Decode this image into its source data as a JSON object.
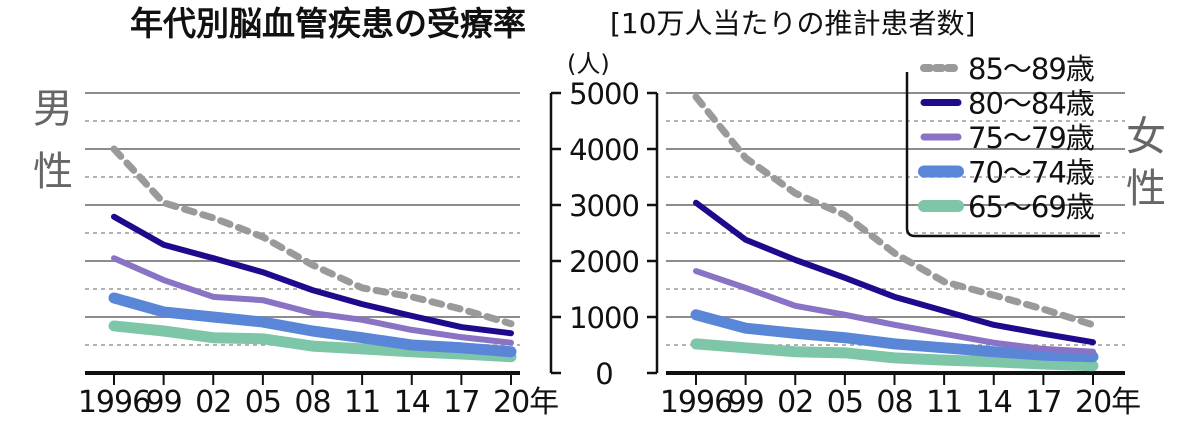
{
  "chart_data": {
    "type": "line",
    "title": "年代別脳血管疾患の受療率",
    "subtitle": "[10万人当たりの推計患者数]",
    "ylabel": "(人)",
    "xlabel_suffix": "年",
    "ylim": [
      0,
      5000
    ],
    "y_ticks": [
      0,
      1000,
      2000,
      3000,
      4000,
      5000
    ],
    "y_tick_labels": [
      "0",
      "1000",
      "2000",
      "3000",
      "4000",
      "5000"
    ],
    "y_minor_gridlines": [
      500,
      1500,
      2500,
      3500,
      4500
    ],
    "grid": true,
    "x": [
      1996,
      1999,
      2002,
      2005,
      2008,
      2011,
      2014,
      2017,
      2020
    ],
    "x_tick_labels": [
      "1996",
      "99",
      "02",
      "05",
      "08",
      "11",
      "14",
      "17",
      "20年"
    ],
    "legend_position": "top-right",
    "legend": [
      {
        "name": "85〜89歳",
        "color": "#9a9a9a",
        "style": "dashed"
      },
      {
        "name": "80〜84歳",
        "color": "#1e0a8c",
        "style": "solid"
      },
      {
        "name": "75〜79歳",
        "color": "#8a72c4",
        "style": "solid"
      },
      {
        "name": "70〜74歳",
        "color": "#5a86d8",
        "style": "solid"
      },
      {
        "name": "65〜69歳",
        "color": "#7ec6a8",
        "style": "solid"
      }
    ],
    "panels": [
      {
        "label": "男性",
        "series": [
          {
            "name": "85〜89歳",
            "values": [
              4000,
              3040,
              2770,
              2430,
              1930,
              1520,
              1360,
              1140,
              880
            ]
          },
          {
            "name": "80〜84歳",
            "values": [
              2790,
              2290,
              2050,
              1800,
              1480,
              1230,
              1020,
              820,
              710
            ]
          },
          {
            "name": "75〜79歳",
            "values": [
              2050,
              1660,
              1360,
              1300,
              1070,
              950,
              770,
              640,
              540
            ]
          },
          {
            "name": "70〜74歳",
            "values": [
              1340,
              1090,
              1000,
              910,
              750,
              630,
              500,
              450,
              380
            ]
          },
          {
            "name": "65〜69歳",
            "values": [
              840,
              750,
              630,
              610,
              480,
              430,
              380,
              340,
              290
            ]
          }
        ]
      },
      {
        "label": "女性",
        "series": [
          {
            "name": "85〜89歳",
            "values": [
              4930,
              3840,
              3210,
              2820,
              2140,
              1630,
              1390,
              1140,
              860
            ]
          },
          {
            "name": "80〜84歳",
            "values": [
              3040,
              2380,
              2020,
              1700,
              1360,
              1110,
              860,
              700,
              550
            ]
          },
          {
            "name": "75〜79歳",
            "values": [
              1820,
              1520,
              1200,
              1040,
              860,
              700,
              540,
              430,
              380
            ]
          },
          {
            "name": "70〜74歳",
            "values": [
              1040,
              800,
              710,
              630,
              520,
              450,
              380,
              320,
              290
            ]
          },
          {
            "name": "65〜69歳",
            "values": [
              520,
              450,
              380,
              360,
              270,
              230,
              200,
              160,
              130
            ]
          }
        ]
      }
    ]
  }
}
